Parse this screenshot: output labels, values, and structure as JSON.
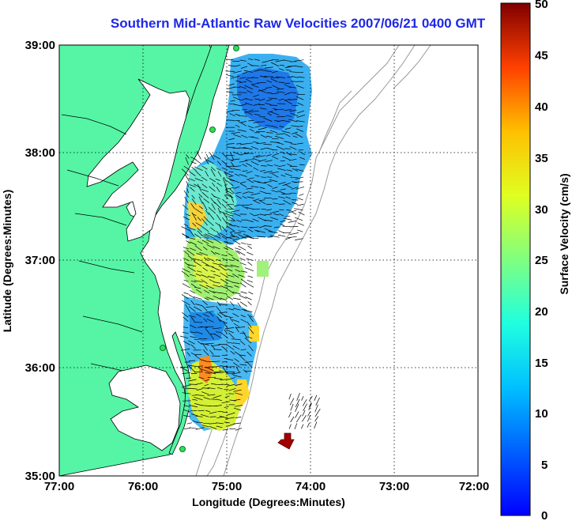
{
  "title": "Southern Mid-Atlantic Raw Velocities 2007/06/21 0400 GMT",
  "x_axis": {
    "label": "Longitude (Degrees:Minutes)",
    "ticks": [
      "77:00",
      "76:00",
      "75:00",
      "74:00",
      "73:00",
      "72:00"
    ]
  },
  "y_axis": {
    "label": "Latitude (Degrees:Minutes)",
    "ticks": [
      "39:00",
      "38:00",
      "37:00",
      "36:00",
      "35:00"
    ]
  },
  "colorbar": {
    "label": "Surface Velocity (cm/s)",
    "ticks": [
      "50",
      "45",
      "40",
      "35",
      "30",
      "25",
      "20",
      "15",
      "10",
      "5",
      "0"
    ],
    "range": [
      0,
      50
    ],
    "colormap": "jet"
  },
  "colors": {
    "title": "#1e28e6",
    "land": "#55f5a5",
    "water": "#ffffff",
    "gridlines": "#000000",
    "bathymetry": "#999999",
    "station_marker": "#2ee05a",
    "scale_arrow": "#a00000"
  },
  "map": {
    "lon_range": [
      -77,
      -72
    ],
    "lat_range": [
      35,
      39
    ],
    "gridlines": "dotted",
    "station_icon": "radar-station-dot",
    "scale_icon": "reference-vector-arrow"
  }
}
